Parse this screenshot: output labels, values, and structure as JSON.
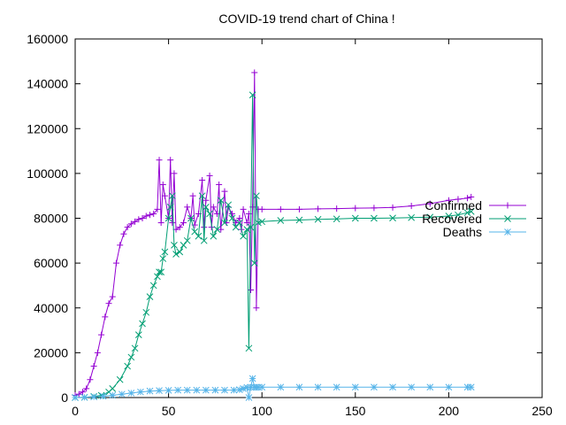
{
  "chart_data": {
    "type": "line",
    "title": "COVID-19 trend chart of China !",
    "xlabel": "",
    "ylabel": "",
    "xlim": [
      0,
      250
    ],
    "ylim": [
      0,
      160000
    ],
    "xticks": [
      0,
      50,
      100,
      150,
      200,
      250
    ],
    "yticks": [
      0,
      20000,
      40000,
      60000,
      80000,
      100000,
      120000,
      140000,
      160000
    ],
    "grid": false,
    "legend_position": "right",
    "series": [
      {
        "name": "Confirmed",
        "color": "#9400d3",
        "marker": "plus",
        "x": [
          0,
          2,
          4,
          6,
          8,
          10,
          12,
          14,
          16,
          18,
          20,
          22,
          24,
          26,
          28,
          30,
          32,
          34,
          36,
          38,
          40,
          42,
          44,
          45,
          46,
          47,
          48,
          50,
          51,
          52,
          53,
          54,
          56,
          58,
          60,
          62,
          63,
          64,
          66,
          68,
          69,
          70,
          72,
          73,
          74,
          76,
          77,
          78,
          80,
          81,
          82,
          84,
          86,
          88,
          89,
          90,
          92,
          93,
          94,
          95,
          96,
          97,
          98,
          100,
          110,
          120,
          130,
          140,
          150,
          160,
          170,
          180,
          190,
          200,
          205,
          210,
          212
        ],
        "y": [
          1000,
          1500,
          2500,
          4000,
          8000,
          14000,
          20000,
          28000,
          36000,
          42000,
          45000,
          60000,
          68000,
          73000,
          76000,
          77500,
          78500,
          79500,
          80000,
          81000,
          81500,
          82000,
          84000,
          106000,
          78000,
          95000,
          90000,
          80000,
          106000,
          78000,
          100000,
          75000,
          76000,
          78000,
          85000,
          80000,
          90000,
          77000,
          82000,
          97000,
          76000,
          88000,
          99000,
          76000,
          85000,
          82000,
          95000,
          75000,
          92000,
          78000,
          85000,
          82000,
          78000,
          80000,
          75000,
          84000,
          78000,
          82000,
          48000,
          85000,
          145000,
          40000,
          84000,
          84000,
          84000,
          84000,
          84200,
          84300,
          84500,
          84600,
          84800,
          85500,
          86500,
          88000,
          88500,
          89000,
          89500
        ]
      },
      {
        "name": "Recovered",
        "color": "#009e73",
        "marker": "x",
        "x": [
          0,
          5,
          10,
          14,
          18,
          20,
          24,
          28,
          30,
          32,
          34,
          36,
          38,
          40,
          42,
          44,
          45,
          46,
          47,
          48,
          50,
          51,
          52,
          53,
          54,
          56,
          58,
          60,
          62,
          64,
          66,
          68,
          69,
          70,
          72,
          74,
          76,
          78,
          80,
          82,
          84,
          86,
          88,
          90,
          92,
          93,
          94,
          95,
          96,
          97,
          98,
          100,
          110,
          120,
          130,
          140,
          150,
          160,
          170,
          180,
          190,
          200,
          205,
          210,
          212
        ],
        "y": [
          0,
          100,
          500,
          1000,
          2500,
          4000,
          8000,
          14000,
          18000,
          22000,
          28000,
          33000,
          38000,
          45000,
          50000,
          54000,
          56000,
          56000,
          62000,
          65000,
          80000,
          85000,
          90000,
          68000,
          64000,
          65000,
          68000,
          70000,
          80000,
          74000,
          72000,
          90000,
          70000,
          85000,
          82000,
          72000,
          75000,
          88000,
          78000,
          86000,
          80000,
          76000,
          78000,
          72000,
          75000,
          22000,
          76000,
          135000,
          60000,
          90000,
          78000,
          78500,
          79000,
          79200,
          79500,
          79700,
          80000,
          80000,
          80100,
          80300,
          80500,
          81000,
          81500,
          82500,
          83000
        ]
      },
      {
        "name": "Deaths",
        "color": "#56b4e9",
        "marker": "star",
        "x": [
          0,
          5,
          10,
          15,
          20,
          25,
          30,
          35,
          40,
          45,
          50,
          55,
          60,
          65,
          70,
          75,
          80,
          85,
          88,
          90,
          92,
          93,
          94,
          95,
          96,
          97,
          98,
          100,
          110,
          120,
          130,
          140,
          150,
          160,
          170,
          180,
          190,
          200,
          210,
          212
        ],
        "y": [
          0,
          100,
          300,
          600,
          1000,
          1500,
          2000,
          2500,
          2900,
          3100,
          3200,
          3300,
          3300,
          3300,
          3300,
          3300,
          3300,
          3300,
          3500,
          4000,
          4500,
          0,
          4600,
          8500,
          4600,
          4600,
          4600,
          4630,
          4634,
          4634,
          4634,
          4634,
          4634,
          4634,
          4634,
          4634,
          4634,
          4634,
          4634,
          4634
        ]
      }
    ]
  }
}
